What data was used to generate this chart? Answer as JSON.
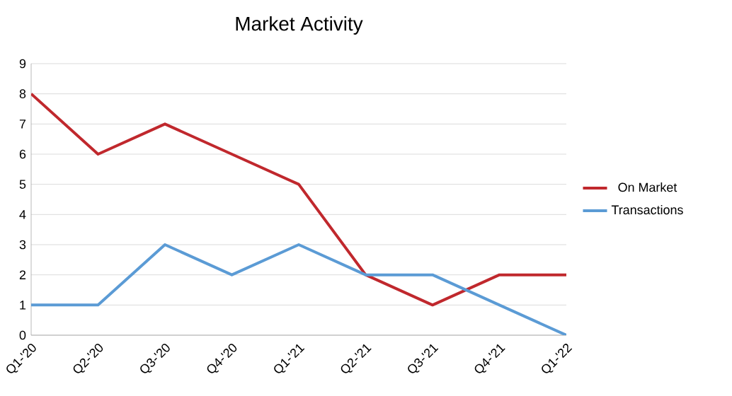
{
  "chart_data": {
    "type": "line",
    "title": "Market Activity",
    "categories": [
      "Q1-'20",
      "Q2-'20",
      "Q3-'20",
      "Q4-'20",
      "Q1-'21",
      "Q2-'21",
      "Q3-'21",
      "Q4-'21",
      "Q1-'22"
    ],
    "series": [
      {
        "name": "On Market",
        "color": "#c0282d",
        "values": [
          8,
          6,
          7,
          6,
          5,
          2,
          1,
          2,
          2
        ]
      },
      {
        "name": "Transactions",
        "color": "#5b9bd5",
        "values": [
          1,
          1,
          3,
          2,
          3,
          2,
          2,
          1,
          0
        ]
      }
    ],
    "ylim": [
      0,
      9
    ],
    "yticks": [
      0,
      1,
      2,
      3,
      4,
      5,
      6,
      7,
      8,
      9
    ],
    "grid": "y",
    "legend": "right",
    "marker": "none",
    "line_style": "solid"
  }
}
